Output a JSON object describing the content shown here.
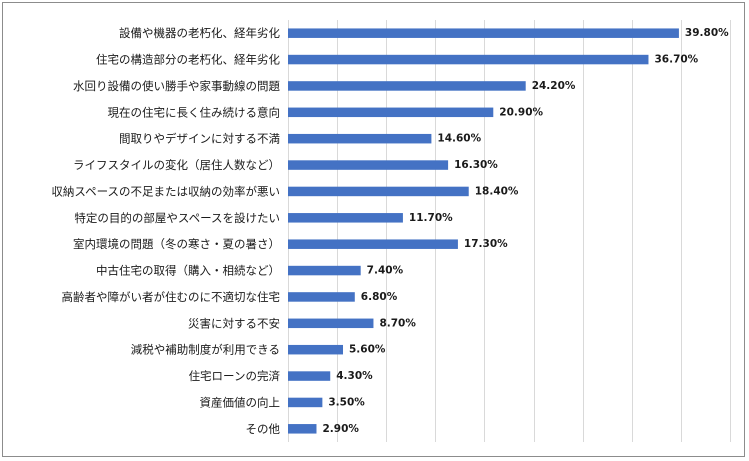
{
  "chart_data": {
    "type": "bar",
    "orientation": "horizontal",
    "title": "",
    "xlabel": "",
    "ylabel": "",
    "xlim": [
      0,
      45
    ],
    "grid": true,
    "value_suffix": "%",
    "bar_color": "#4472c4",
    "categories": [
      "設備や機器の老朽化、経年劣化",
      "住宅の構造部分の老朽化、経年劣化",
      "水回り設備の使い勝手や家事動線の問題",
      "現在の住宅に長く住み続ける意向",
      "間取りやデザインに対する不満",
      "ライフスタイルの変化（居住人数など）",
      "収納スペースの不足または収納の効率が悪い",
      "特定の目的の部屋やスペースを設けたい",
      "室内環境の問題（冬の寒さ・夏の暑さ）",
      "中古住宅の取得（購入・相続など）",
      "高齢者や障がい者が住むのに不適切な住宅",
      "災害に対する不安",
      "減税や補助制度が利用できる",
      "住宅ローンの完済",
      "資産価値の向上",
      "その他"
    ],
    "values": [
      39.8,
      36.7,
      24.2,
      20.9,
      14.6,
      16.3,
      18.4,
      11.7,
      17.3,
      7.4,
      6.8,
      8.7,
      5.6,
      4.3,
      3.5,
      2.9
    ],
    "value_labels": [
      "39.80%",
      "36.70%",
      "24.20%",
      "20.90%",
      "14.60%",
      "16.30%",
      "18.40%",
      "11.70%",
      "17.30%",
      "7.40%",
      "6.80%",
      "8.70%",
      "5.60%",
      "4.30%",
      "3.50%",
      "2.90%"
    ]
  }
}
